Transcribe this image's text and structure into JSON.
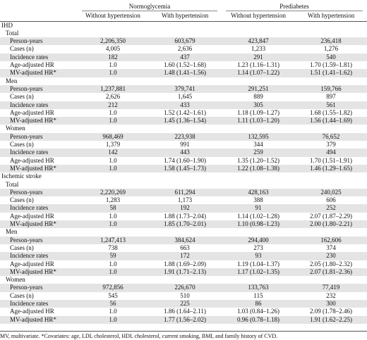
{
  "table": {
    "group_headers": [
      "Normoglycemia",
      "Prediabetes"
    ],
    "col_headers": [
      "Without hypertension",
      "With hypertension",
      "Without hypertension",
      "With hypertension"
    ],
    "sections": [
      {
        "title": "IHD",
        "subsections": [
          {
            "title": "Total",
            "rows": [
              {
                "label": "Person-years",
                "values": [
                  "2,206,350",
                  "603,679",
                  "423,847",
                  "236,418"
                ]
              },
              {
                "label": "Cases (n)",
                "values": [
                  "4,005",
                  "2,636",
                  "1,233",
                  "1,276"
                ]
              },
              {
                "label": "Incidence rates",
                "values": [
                  "182",
                  "437",
                  "291",
                  "540"
                ]
              },
              {
                "label": "Age-adjusted HR",
                "values": [
                  "1.0",
                  "1.60 (1.52–1.68)",
                  "1.23 (1.16–1.31)",
                  "1.70 (1.59–1.81)"
                ]
              },
              {
                "label": "MV-adjusted HR*",
                "values": [
                  "1.0",
                  "1.48 (1.41–1.56)",
                  "1.14 (1.07–1.22)",
                  "1.51 (1.41–1.62)"
                ]
              }
            ]
          },
          {
            "title": "Men",
            "rows": [
              {
                "label": "Person-years",
                "values": [
                  "1,237,881",
                  "379,741",
                  "291,251",
                  "159,766"
                ]
              },
              {
                "label": "Cases (n)",
                "values": [
                  "2,626",
                  "1,645",
                  "889",
                  "897"
                ]
              },
              {
                "label": "Incidence rates",
                "values": [
                  "212",
                  "433",
                  "305",
                  "561"
                ]
              },
              {
                "label": "Age-adjusted HR",
                "values": [
                  "1.0",
                  "1.52 (1.42–1.61)",
                  "1.18 (1.09–1.27)",
                  "1.68 (1.55–1.82)"
                ]
              },
              {
                "label": "MV-adjusted HR*",
                "values": [
                  "1.0",
                  "1.45 (1.36–1.54)",
                  "1.11 (1.03–1.20)",
                  "1.56 (1.44–1.69)"
                ]
              }
            ]
          },
          {
            "title": "Women",
            "rows": [
              {
                "label": "Person-years",
                "values": [
                  "968,469",
                  "223,938",
                  "132,595",
                  "76,652"
                ]
              },
              {
                "label": "Cases (n)",
                "values": [
                  "1,379",
                  "991",
                  "344",
                  "379"
                ]
              },
              {
                "label": "Incidence rates",
                "values": [
                  "142",
                  "443",
                  "259",
                  "494"
                ]
              },
              {
                "label": "Age-adjusted HR",
                "values": [
                  "1.0",
                  "1.74 (1.60–1.90)",
                  "1.35 (1.20–1.52)",
                  "1.70 (1.51–1.91)"
                ]
              },
              {
                "label": "MV-adjusted HR*",
                "values": [
                  "1.0",
                  "1.58 (1.45–1.73)",
                  "1.22 (1.08–1.38)",
                  "1.46 (1.29–1.65)"
                ]
              }
            ]
          }
        ]
      },
      {
        "title": "Ischemic stroke",
        "subsections": [
          {
            "title": "Total",
            "rows": [
              {
                "label": "Person-years",
                "values": [
                  "2,220,269",
                  "611,294",
                  "428,163",
                  "240,025"
                ]
              },
              {
                "label": "Cases (n)",
                "values": [
                  "1,283",
                  "1,173",
                  "388",
                  "606"
                ]
              },
              {
                "label": "Incidence rates",
                "values": [
                  "58",
                  "192",
                  "91",
                  "252"
                ]
              },
              {
                "label": "Age-adjusted HR",
                "values": [
                  "1.0",
                  "1.88 (1.73–2.04)",
                  "1.14 (1.02–1.28)",
                  "2.07 (1.87–2.29)"
                ]
              },
              {
                "label": "MV-adjusted HR*",
                "values": [
                  "1.0",
                  "1.85 (1.70–2.01)",
                  "1.10 (0.98–1.23)",
                  "2.00 (1.80–2.21)"
                ]
              }
            ]
          },
          {
            "title": "Men",
            "rows": [
              {
                "label": "Person-years",
                "values": [
                  "1,247,413",
                  "384,624",
                  "294,400",
                  "162,606"
                ]
              },
              {
                "label": "Cases (n)",
                "values": [
                  "738",
                  "663",
                  "273",
                  "374"
                ]
              },
              {
                "label": "Incidence rates",
                "values": [
                  "59",
                  "172",
                  "93",
                  "230"
                ]
              },
              {
                "label": "Age-adjusted HR",
                "values": [
                  "1.0",
                  "1.88 (1.69–2.09)",
                  "1.19 (1.04–1.37)",
                  "2.05 (1.80–2.32)"
                ]
              },
              {
                "label": "MV-adjusted HR*",
                "values": [
                  "1.0",
                  "1.91 (1.71–2.13)",
                  "1.17 (1.02–1.35)",
                  "2.07 (1.81–2.36)"
                ]
              }
            ]
          },
          {
            "title": "Women",
            "rows": [
              {
                "label": "Person-years",
                "values": [
                  "972,856",
                  "226,670",
                  "133,763",
                  "77,419"
                ]
              },
              {
                "label": "Cases (n)",
                "values": [
                  "545",
                  "510",
                  "115",
                  "232"
                ]
              },
              {
                "label": "Incidence rates",
                "values": [
                  "56",
                  "225",
                  "86",
                  "300"
                ]
              },
              {
                "label": "Age-adjusted HR",
                "values": [
                  "1.0",
                  "1.86 (1.64–2.11)",
                  "1.03 (0.84–1.26)",
                  "2.09 (1.78–2.46)"
                ]
              },
              {
                "label": "MV-adjusted HR*",
                "values": [
                  "1.0",
                  "1.77 (1.56–2.02)",
                  "0.96 (0.78–1.18)",
                  "1.91 (1.62–2.25)"
                ]
              }
            ]
          }
        ]
      }
    ],
    "footnote": "MV, multivariate. *Covariates: age, LDL cholesterol, HDL cholesterol, current smoking, BMI, and family history of CVD."
  }
}
